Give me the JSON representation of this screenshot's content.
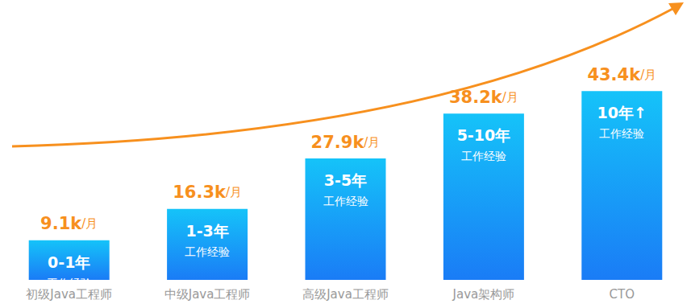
{
  "chart_data": {
    "type": "bar",
    "categories": [
      "初级Java工程师",
      "中级Java工程师",
      "高级Java工程师",
      "Java架构师",
      "CTO"
    ],
    "values": [
      9.1,
      16.3,
      27.9,
      38.2,
      43.4
    ],
    "value_labels": [
      "9.1k/月",
      "16.3k/月",
      "27.9k/月",
      "38.2k/月",
      "43.4k/月"
    ],
    "annotations": [
      [
        "0-1年",
        "工作经验"
      ],
      [
        "1-3年",
        "工作经验"
      ],
      [
        "3-5年",
        "工作经验"
      ],
      [
        "5-10年",
        "工作经验"
      ],
      [
        "10年↑",
        "工作经验"
      ]
    ],
    "ylim": [
      0,
      44
    ],
    "color": "#1a7cf6",
    "data_labels": true,
    "grid": false,
    "tick_labels": "x"
  }
}
